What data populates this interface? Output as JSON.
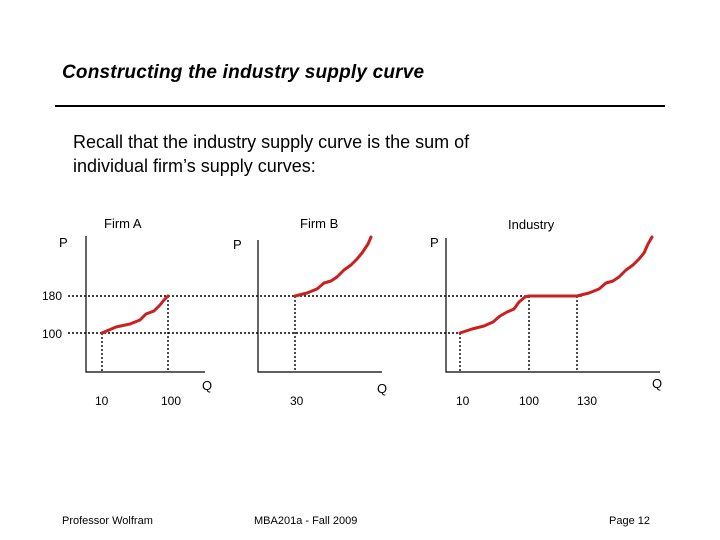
{
  "slide": {
    "title": "Constructing the industry supply curve",
    "body_line1": "Recall that the industry supply curve is the sum of",
    "body_line2": "individual firm’s supply curves:"
  },
  "graphs": {
    "firm_a": {
      "title": "Firm A",
      "p_label": "P",
      "q_label": "Q",
      "q_ticks": [
        "10",
        "100"
      ]
    },
    "firm_b": {
      "title": "Firm B",
      "p_label": "P",
      "q_label": "Q",
      "q_ticks": [
        "30"
      ]
    },
    "industry": {
      "title": "Industry",
      "p_label": "P",
      "q_label": "Q",
      "q_ticks": [
        "10",
        "100",
        "130"
      ]
    },
    "price_levels": [
      "180",
      "100"
    ]
  },
  "colors": {
    "supply_curve": "#cc1f1f",
    "axes": "#000000"
  },
  "footer": {
    "left": "Professor Wolfram",
    "center": "MBA201a - Fall 2009",
    "right": "Page 12"
  }
}
